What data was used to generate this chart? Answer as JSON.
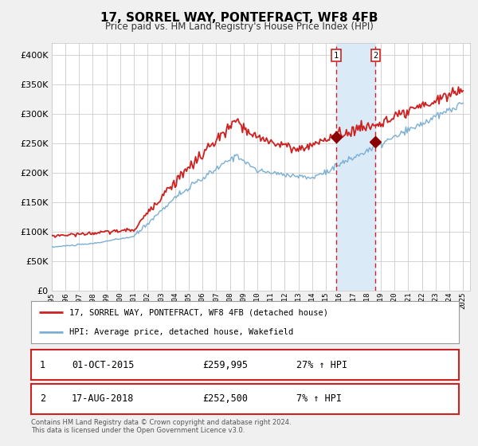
{
  "title": "17, SORREL WAY, PONTEFRACT, WF8 4FB",
  "subtitle": "Price paid vs. HM Land Registry's House Price Index (HPI)",
  "legend_line1": "17, SORREL WAY, PONTEFRACT, WF8 4FB (detached house)",
  "legend_line2": "HPI: Average price, detached house, Wakefield",
  "transaction1_label": "1",
  "transaction1_date": "01-OCT-2015",
  "transaction1_price": "£259,995",
  "transaction1_hpi": "27% ↑ HPI",
  "transaction2_label": "2",
  "transaction2_date": "17-AUG-2018",
  "transaction2_price": "£252,500",
  "transaction2_hpi": "7% ↑ HPI",
  "footer1": "Contains HM Land Registry data © Crown copyright and database right 2024.",
  "footer2": "This data is licensed under the Open Government Licence v3.0.",
  "hpi_color": "#7bafd4",
  "price_color": "#cc2222",
  "marker_color": "#8b0000",
  "vline_color": "#cc2222",
  "shade_color": "#daeaf7",
  "marker1_date_num": 2015.75,
  "marker1_value": 259995,
  "marker2_date_num": 2018.625,
  "marker2_value": 252500,
  "vline1_date_num": 2015.75,
  "vline2_date_num": 2018.625,
  "ylim_max": 420000,
  "yticks": [
    0,
    50000,
    100000,
    150000,
    200000,
    250000,
    300000,
    350000,
    400000
  ],
  "xlim_min": 1995,
  "xlim_max": 2025.5,
  "background_color": "#f0f0f0",
  "plot_bg_color": "#ffffff",
  "grid_color": "#cccccc",
  "box_edge_color": "#cc2222"
}
